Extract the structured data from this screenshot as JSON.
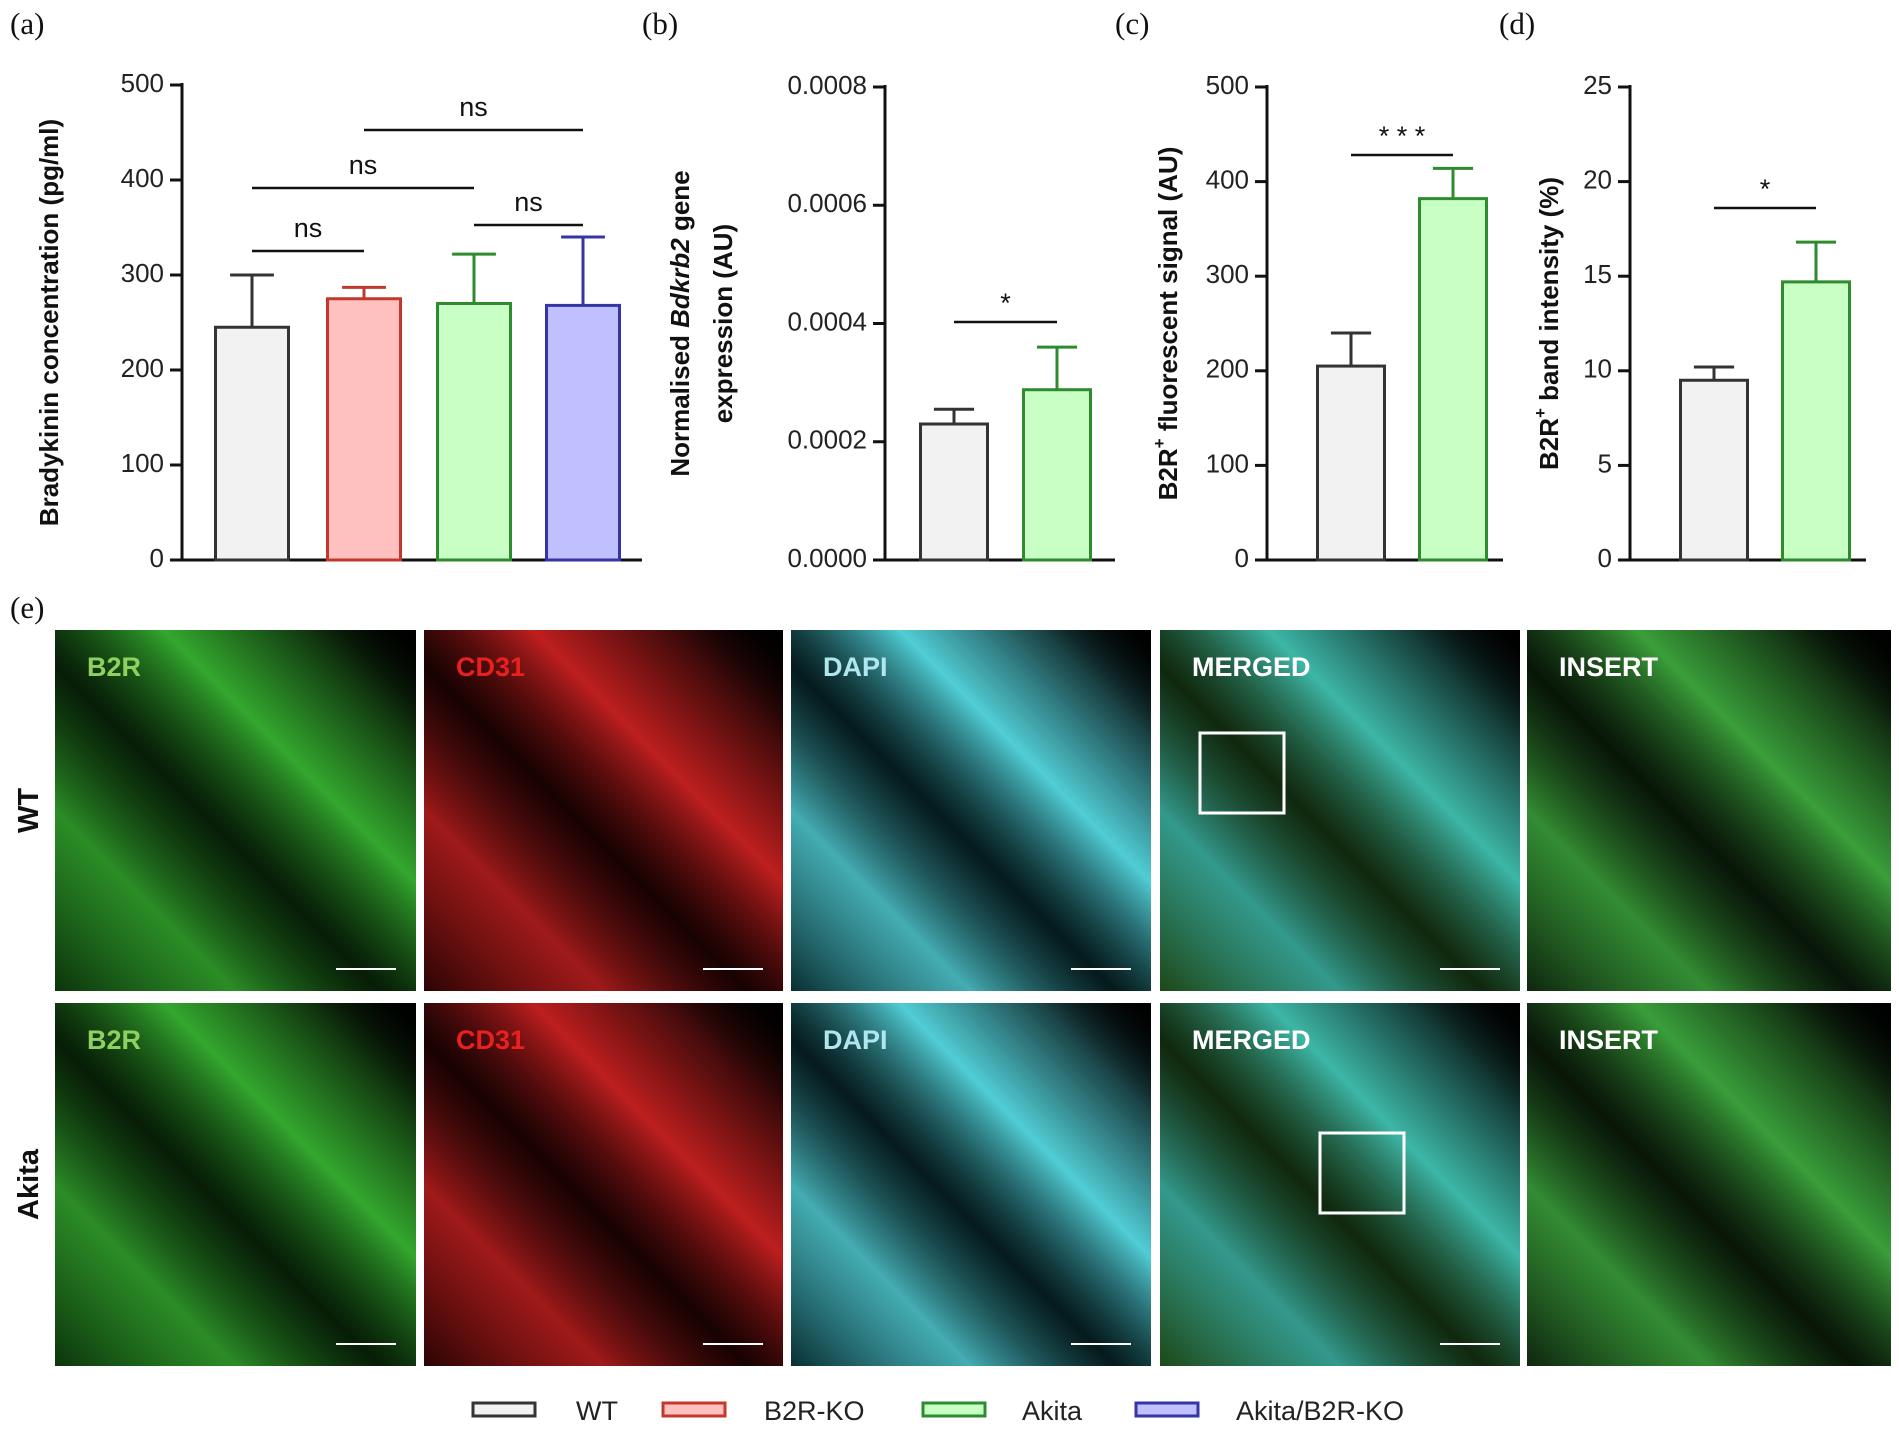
{
  "legend": [
    {
      "name": "WT",
      "fill": "#f2f2f2",
      "stroke": "#333333"
    },
    {
      "name": "B2R-KO",
      "fill": "#ffc0c0",
      "stroke": "#c0392b"
    },
    {
      "name": "Akita",
      "fill": "#c8ffc4",
      "stroke": "#2e8b2e"
    },
    {
      "name": "Akita/B2R-KO",
      "fill": "#c0c0ff",
      "stroke": "#3535a5"
    }
  ],
  "chart_data": [
    {
      "type": "bar",
      "panel": "(a)",
      "ylabel_lines": [
        [
          {
            "text": "Bradykinin concentration (pg/ml)"
          }
        ]
      ],
      "ylim": [
        0,
        500
      ],
      "yticks": [
        0,
        100,
        200,
        300,
        400,
        500
      ],
      "bars": [
        {
          "group": "WT",
          "value": 245,
          "error": 55
        },
        {
          "group": "B2R-KO",
          "value": 275,
          "error": 12
        },
        {
          "group": "Akita",
          "value": 270,
          "error": 52
        },
        {
          "group": "Akita/B2R-KO",
          "value": 268,
          "error": 72
        }
      ],
      "annotations": [
        {
          "text": "ns",
          "between": [
            0,
            1
          ]
        },
        {
          "text": "ns",
          "between": [
            0,
            2
          ]
        },
        {
          "text": "ns",
          "between": [
            2,
            3
          ]
        },
        {
          "text": "ns",
          "between": [
            1,
            3
          ]
        }
      ]
    },
    {
      "type": "bar",
      "panel": "(b)",
      "ylabel_lines": [
        [
          {
            "text": "Normalised "
          },
          {
            "text": "Bdkrb2",
            "italic": true
          },
          {
            "text": " gene"
          }
        ],
        [
          {
            "text": "expression (AU)"
          }
        ]
      ],
      "ylim": [
        0,
        0.0008
      ],
      "yticks": [
        {
          "value": 0,
          "label": "0.0000"
        },
        {
          "value": 0.0002,
          "label": "0.0002"
        },
        {
          "value": 0.0004,
          "label": "0.0004"
        },
        {
          "value": 0.0006,
          "label": "0.0006"
        },
        {
          "value": 0.0008,
          "label": "0.0008"
        }
      ],
      "bars": [
        {
          "group": "WT",
          "value": 0.00023,
          "error": 2.5e-05
        },
        {
          "group": "Akita",
          "value": 0.000288,
          "error": 7.2e-05
        }
      ],
      "annotations": [
        {
          "text": "*",
          "between": [
            0,
            1
          ]
        }
      ]
    },
    {
      "type": "bar",
      "panel": "(c)",
      "ylabel_lines": [
        [
          {
            "text": "B2R"
          },
          {
            "text": "+",
            "sup": true
          },
          {
            "text": " fluorescent signal (AU)"
          }
        ]
      ],
      "ylim": [
        0,
        500
      ],
      "yticks": [
        0,
        100,
        200,
        300,
        400,
        500
      ],
      "bars": [
        {
          "group": "WT",
          "value": 205,
          "error": 35
        },
        {
          "group": "Akita",
          "value": 382,
          "error": 32
        }
      ],
      "annotations": [
        {
          "text": "* * *",
          "between": [
            0,
            1
          ]
        }
      ]
    },
    {
      "type": "bar",
      "panel": "(d)",
      "ylabel_lines": [
        [
          {
            "text": "B2R"
          },
          {
            "text": "+",
            "sup": true
          },
          {
            "text": " band intensity (%)"
          }
        ]
      ],
      "ylim": [
        0,
        25
      ],
      "yticks": [
        0,
        5,
        10,
        15,
        20,
        25
      ],
      "bars": [
        {
          "group": "WT",
          "value": 9.5,
          "error": 0.7
        },
        {
          "group": "Akita",
          "value": 14.7,
          "error": 2.1
        }
      ],
      "annotations": [
        {
          "text": "*",
          "between": [
            0,
            1
          ]
        }
      ]
    }
  ],
  "panel_e": {
    "label": "(e)",
    "columns": [
      {
        "name": "B2R",
        "color": "#8fd060"
      },
      {
        "name": "CD31",
        "color": "#e82020"
      },
      {
        "name": "DAPI",
        "color": "#b0e6ee"
      },
      {
        "name": "MERGED",
        "color": "#ffffff"
      },
      {
        "name": "INSERT",
        "color": "#ffffff"
      }
    ],
    "rows": [
      "WT",
      "Akita"
    ]
  }
}
